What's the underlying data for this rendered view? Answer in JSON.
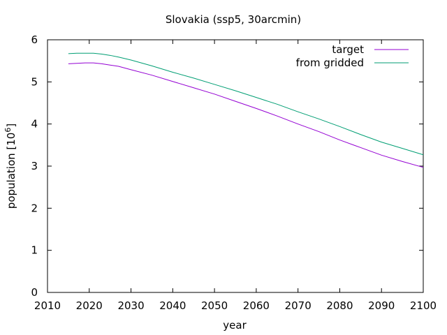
{
  "chart_data": {
    "type": "line",
    "title": "Slovakia (ssp5, 30arcmin)",
    "xlabel": "year",
    "ylabel": "population [10",
    "ylabel_sup": "6",
    "ylabel_suffix": "]",
    "xlim": [
      2010,
      2100
    ],
    "ylim": [
      0,
      6
    ],
    "xticks": [
      "2010",
      "2020",
      "2030",
      "2040",
      "2050",
      "2060",
      "2070",
      "2080",
      "2090",
      "2100"
    ],
    "yticks": [
      "0",
      "1",
      "2",
      "3",
      "4",
      "5",
      "6"
    ],
    "grid": false,
    "legend_position": "top-right",
    "series": [
      {
        "name": "target",
        "color": "#9400d3",
        "x": [
          2015,
          2017,
          2019,
          2021,
          2023,
          2025,
          2027,
          2030,
          2035,
          2040,
          2045,
          2050,
          2055,
          2060,
          2065,
          2070,
          2075,
          2080,
          2085,
          2090,
          2095,
          2100
        ],
        "y": [
          5.43,
          5.44,
          5.45,
          5.45,
          5.43,
          5.4,
          5.37,
          5.29,
          5.16,
          5.01,
          4.86,
          4.71,
          4.54,
          4.37,
          4.19,
          4.0,
          3.82,
          3.62,
          3.44,
          3.26,
          3.11,
          2.97
        ]
      },
      {
        "name": "from gridded",
        "color": "#009e73",
        "x": [
          2015,
          2017,
          2019,
          2021,
          2023,
          2025,
          2027,
          2030,
          2035,
          2040,
          2045,
          2050,
          2055,
          2060,
          2065,
          2070,
          2075,
          2080,
          2085,
          2090,
          2095,
          2100
        ],
        "y": [
          5.67,
          5.68,
          5.68,
          5.68,
          5.66,
          5.63,
          5.59,
          5.52,
          5.38,
          5.23,
          5.09,
          4.94,
          4.79,
          4.63,
          4.47,
          4.29,
          4.12,
          3.94,
          3.75,
          3.57,
          3.42,
          3.27
        ]
      }
    ]
  }
}
